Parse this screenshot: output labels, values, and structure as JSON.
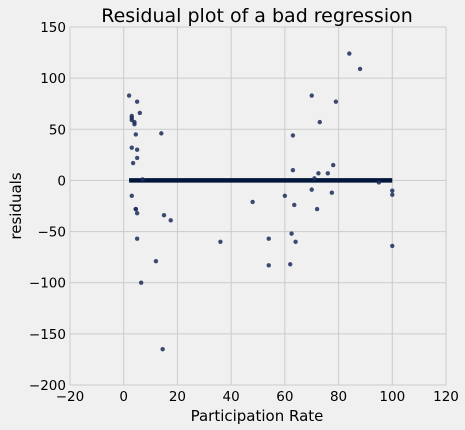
{
  "chart_data": {
    "type": "scatter",
    "title": "Residual plot of a bad regression",
    "xlabel": "Participation Rate",
    "ylabel": "residuals",
    "xlim": [
      -20,
      120
    ],
    "ylim": [
      -200,
      150
    ],
    "xticks": [
      -20,
      0,
      20,
      40,
      60,
      80,
      100,
      120
    ],
    "yticks": [
      -200,
      -150,
      -100,
      -50,
      0,
      50,
      100,
      150
    ],
    "xtick_labels": [
      "−20",
      "0",
      "20",
      "40",
      "60",
      "80",
      "100",
      "120"
    ],
    "ytick_labels": [
      "−200",
      "−150",
      "−100",
      "−50",
      "0",
      "50",
      "100",
      "150"
    ],
    "grid": true,
    "point_color": "#1f2b5c",
    "zero_line": {
      "y": 0,
      "x": [
        2,
        100
      ],
      "color": "#00163a"
    },
    "points": [
      [
        2,
        83
      ],
      [
        3,
        63
      ],
      [
        3,
        61
      ],
      [
        3,
        59
      ],
      [
        3,
        32
      ],
      [
        3,
        -15
      ],
      [
        3.5,
        17
      ],
      [
        4,
        57
      ],
      [
        4,
        55
      ],
      [
        4.5,
        45
      ],
      [
        4.5,
        -28
      ],
      [
        4.5,
        -28
      ],
      [
        5,
        77
      ],
      [
        5,
        22
      ],
      [
        5,
        30
      ],
      [
        5,
        -57
      ],
      [
        5,
        -32
      ],
      [
        6,
        66
      ],
      [
        6.5,
        -100
      ],
      [
        7,
        1
      ],
      [
        12,
        -79
      ],
      [
        14,
        46
      ],
      [
        14.5,
        -165
      ],
      [
        15,
        -34
      ],
      [
        17.5,
        -39
      ],
      [
        36,
        -60
      ],
      [
        48,
        -21
      ],
      [
        54,
        -57
      ],
      [
        54,
        -83
      ],
      [
        60,
        -15
      ],
      [
        62,
        -82
      ],
      [
        62.5,
        -52
      ],
      [
        63,
        44
      ],
      [
        63,
        10
      ],
      [
        63.5,
        -24
      ],
      [
        64,
        -60
      ],
      [
        70,
        83
      ],
      [
        70,
        -9
      ],
      [
        71,
        2
      ],
      [
        72,
        -28
      ],
      [
        72.5,
        7
      ],
      [
        73,
        57
      ],
      [
        76,
        7
      ],
      [
        77.5,
        -12
      ],
      [
        78,
        15
      ],
      [
        79,
        77
      ],
      [
        84,
        124
      ],
      [
        88,
        109
      ],
      [
        95,
        -2
      ],
      [
        100,
        -10
      ],
      [
        100,
        -14
      ],
      [
        100,
        -64
      ]
    ]
  }
}
